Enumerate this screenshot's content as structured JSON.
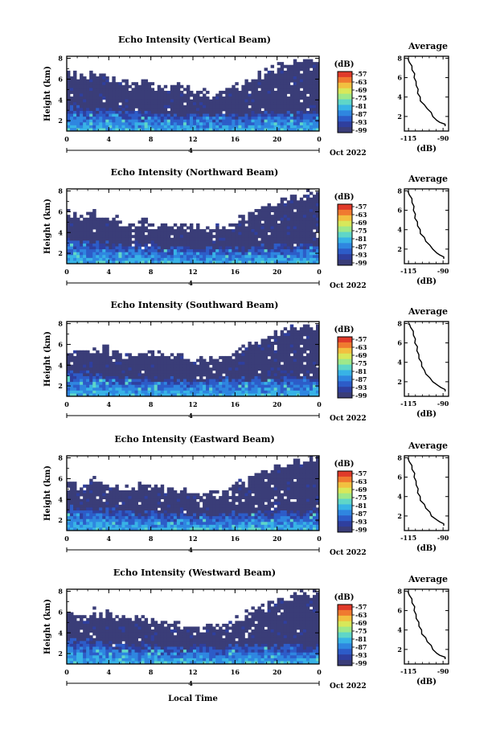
{
  "figure": {
    "bottom_label": "Local Time",
    "date_label": "Oct 2022",
    "day_label": "4",
    "heatmap_palette": [
      "#3a3d78",
      "#2f3f9e",
      "#2d5cc8",
      "#2f86e0",
      "#38b3e6",
      "#5fd6c8",
      "#9ee88a",
      "#d8e85a",
      "#f2c040",
      "#f07a30",
      "#e03a2a"
    ]
  },
  "chart_data": [
    {
      "type": "heatmap",
      "title": "Echo Intensity (Vertical Beam)",
      "ylabel": "Height (km)",
      "xlabel": "",
      "x_ticks": [
        "0",
        "4",
        "8",
        "12",
        "16",
        "20",
        "0"
      ],
      "y_ticks": [
        "2",
        "4",
        "6",
        "8"
      ],
      "xlim": [
        0,
        24
      ],
      "ylim": [
        1,
        8.2
      ],
      "colorbar": {
        "unit": "(dB)",
        "ticks": [
          "-57",
          "-63",
          "-69",
          "-75",
          "-81",
          "-87",
          "-93",
          "-99"
        ]
      },
      "layers": {
        "cloud_top_km": [
          6.9,
          6.6,
          6.4,
          6.8,
          6.2,
          6.0,
          5.9,
          6.1,
          5.8,
          5.6,
          5.7,
          5.4,
          5.2,
          5.0,
          4.9,
          5.0,
          5.4,
          5.9,
          6.4,
          6.9,
          7.3,
          7.6,
          7.9,
          8.1,
          8.2
        ],
        "strong_top_km": [
          3.1,
          3.0,
          2.9,
          2.8,
          2.7,
          2.6,
          2.6,
          2.5,
          2.5,
          2.4,
          2.4,
          2.3,
          2.3,
          2.3,
          2.4,
          2.4,
          2.3,
          2.4,
          2.4,
          2.5,
          2.5,
          2.6,
          2.6,
          2.5,
          2.5
        ]
      },
      "average": {
        "title": "Average",
        "xlabel": "(dB)",
        "x_ticks": [
          "-115",
          "-90"
        ],
        "y_ticks": [
          "2",
          "4",
          "6",
          "8"
        ],
        "xlim": [
          -118,
          -86
        ],
        "ylim": [
          0.5,
          8.2
        ],
        "y": [
          1.0,
          1.2,
          1.4,
          1.6,
          2.0,
          2.4,
          2.8,
          3.2,
          3.6,
          4.0,
          4.4,
          4.8,
          5.2,
          5.6,
          6.0,
          6.4,
          6.8,
          7.2,
          7.6,
          8.0
        ],
        "x": [
          -88,
          -89,
          -92,
          -95,
          -97,
          -99,
          -101,
          -104,
          -106,
          -107,
          -108,
          -108.5,
          -109,
          -110,
          -110.5,
          -111,
          -112,
          -113,
          -114,
          -116
        ]
      }
    },
    {
      "type": "heatmap",
      "title": "Echo Intensity (Northward Beam)",
      "ylabel": "Height (km)",
      "xlabel": "",
      "x_ticks": [
        "0",
        "4",
        "8",
        "12",
        "16",
        "20",
        "0"
      ],
      "y_ticks": [
        "2",
        "4",
        "6",
        "8"
      ],
      "xlim": [
        0,
        24
      ],
      "ylim": [
        1,
        8.2
      ],
      "colorbar": {
        "unit": "(dB)",
        "ticks": [
          "-57",
          "-63",
          "-69",
          "-75",
          "-81",
          "-87",
          "-93",
          "-99"
        ]
      },
      "layers": {
        "cloud_top_km": [
          6.2,
          5.8,
          5.6,
          6.0,
          5.4,
          5.3,
          5.1,
          5.3,
          5.1,
          5.0,
          5.0,
          4.8,
          4.7,
          4.6,
          4.6,
          4.8,
          5.2,
          5.8,
          6.3,
          6.8,
          7.2,
          7.5,
          7.8,
          8.0,
          8.1
        ],
        "strong_top_km": [
          3.0,
          2.9,
          2.8,
          2.7,
          2.6,
          2.5,
          2.5,
          2.4,
          2.4,
          2.3,
          2.3,
          2.3,
          2.2,
          2.2,
          2.3,
          2.3,
          2.3,
          2.3,
          2.4,
          2.4,
          2.5,
          2.5,
          2.6,
          2.5,
          2.5
        ]
      },
      "average": {
        "title": "Average",
        "xlabel": "(dB)",
        "x_ticks": [
          "-115",
          "-90"
        ],
        "y_ticks": [
          "2",
          "4",
          "6",
          "8"
        ],
        "xlim": [
          -118,
          -86
        ],
        "ylim": [
          0.5,
          8.2
        ],
        "y": [
          1.0,
          1.2,
          1.4,
          1.6,
          2.0,
          2.4,
          2.8,
          3.2,
          3.6,
          4.0,
          4.4,
          4.8,
          5.2,
          5.6,
          6.0,
          6.4,
          6.8,
          7.2,
          7.6,
          8.0
        ],
        "x": [
          -89,
          -90,
          -92,
          -95,
          -97,
          -100,
          -102,
          -104,
          -106,
          -107,
          -108,
          -109,
          -110,
          -110.5,
          -111,
          -111.5,
          -112,
          -113,
          -114,
          -116
        ]
      }
    },
    {
      "type": "heatmap",
      "title": "Echo Intensity (Southward Beam)",
      "ylabel": "Height (km)",
      "xlabel": "",
      "x_ticks": [
        "0",
        "4",
        "8",
        "12",
        "16",
        "20",
        "0"
      ],
      "y_ticks": [
        "2",
        "4",
        "6",
        "8"
      ],
      "xlim": [
        0,
        24
      ],
      "ylim": [
        1,
        8.2
      ],
      "colorbar": {
        "unit": "(dB)",
        "ticks": [
          "-57",
          "-63",
          "-69",
          "-75",
          "-81",
          "-87",
          "-93",
          "-99"
        ]
      },
      "layers": {
        "cloud_top_km": [
          5.6,
          5.4,
          5.5,
          5.8,
          5.6,
          5.2,
          5.0,
          5.3,
          5.5,
          5.6,
          5.3,
          5.0,
          4.8,
          4.6,
          4.8,
          5.0,
          5.4,
          5.9,
          6.3,
          6.8,
          7.2,
          7.6,
          7.9,
          8.1,
          8.2
        ],
        "strong_top_km": [
          3.2,
          3.0,
          2.9,
          2.8,
          2.7,
          2.7,
          2.6,
          2.5,
          2.5,
          2.4,
          2.4,
          2.4,
          2.3,
          2.3,
          2.3,
          2.4,
          2.4,
          2.4,
          2.5,
          2.5,
          2.5,
          2.6,
          2.6,
          2.5,
          2.5
        ]
      },
      "average": {
        "title": "Average",
        "xlabel": "(dB)",
        "x_ticks": [
          "-115",
          "-90"
        ],
        "y_ticks": [
          "2",
          "4",
          "6",
          "8"
        ],
        "xlim": [
          -118,
          -86
        ],
        "ylim": [
          0.5,
          8.2
        ],
        "y": [
          1.0,
          1.2,
          1.4,
          1.6,
          2.0,
          2.4,
          2.8,
          3.2,
          3.6,
          4.0,
          4.4,
          4.8,
          5.2,
          5.6,
          6.0,
          6.4,
          6.8,
          7.2,
          7.6,
          8.0
        ],
        "x": [
          -88,
          -89,
          -91,
          -94,
          -97,
          -100,
          -102,
          -104,
          -105,
          -106,
          -107,
          -108,
          -108.5,
          -109,
          -110,
          -110.5,
          -111,
          -112,
          -113,
          -115
        ]
      }
    },
    {
      "type": "heatmap",
      "title": "Echo Intensity (Eastward Beam)",
      "ylabel": "Height (km)",
      "xlabel": "",
      "x_ticks": [
        "0",
        "4",
        "8",
        "12",
        "16",
        "20",
        "0"
      ],
      "y_ticks": [
        "2",
        "4",
        "6",
        "8"
      ],
      "xlim": [
        0,
        24
      ],
      "ylim": [
        1,
        8.2
      ],
      "colorbar": {
        "unit": "(dB)",
        "ticks": [
          "-57",
          "-63",
          "-69",
          "-75",
          "-81",
          "-87",
          "-93",
          "-99"
        ]
      },
      "layers": {
        "cloud_top_km": [
          6.0,
          5.7,
          5.8,
          6.1,
          5.6,
          5.4,
          5.3,
          5.5,
          5.6,
          5.4,
          5.2,
          5.0,
          4.9,
          4.7,
          4.8,
          5.1,
          5.5,
          6.0,
          6.5,
          6.9,
          7.3,
          7.6,
          7.9,
          8.1,
          8.2
        ],
        "strong_top_km": [
          3.1,
          3.0,
          2.9,
          2.8,
          2.7,
          2.6,
          2.6,
          2.5,
          2.5,
          2.4,
          2.4,
          2.3,
          2.3,
          2.3,
          2.3,
          2.4,
          2.4,
          2.4,
          2.5,
          2.5,
          2.5,
          2.6,
          2.6,
          2.5,
          2.5
        ]
      },
      "average": {
        "title": "Average",
        "xlabel": "(dB)",
        "x_ticks": [
          "-115",
          "-90"
        ],
        "y_ticks": [
          "2",
          "4",
          "6",
          "8"
        ],
        "xlim": [
          -118,
          -86
        ],
        "ylim": [
          0.5,
          8.2
        ],
        "y": [
          1.0,
          1.2,
          1.4,
          1.6,
          2.0,
          2.4,
          2.8,
          3.2,
          3.6,
          4.0,
          4.4,
          4.8,
          5.2,
          5.6,
          6.0,
          6.4,
          6.8,
          7.2,
          7.6,
          8.0
        ],
        "x": [
          -89,
          -90,
          -92,
          -95,
          -98,
          -100,
          -102,
          -104,
          -106,
          -107,
          -108,
          -108.5,
          -109,
          -110,
          -110.5,
          -111,
          -112,
          -113,
          -114,
          -116
        ]
      }
    },
    {
      "type": "heatmap",
      "title": "Echo Intensity (Westward Beam)",
      "ylabel": "Height (km)",
      "xlabel": "Local Time",
      "x_ticks": [
        "0",
        "4",
        "8",
        "12",
        "16",
        "20",
        "0"
      ],
      "y_ticks": [
        "2",
        "4",
        "6",
        "8"
      ],
      "xlim": [
        0,
        24
      ],
      "ylim": [
        1,
        8.2
      ],
      "colorbar": {
        "unit": "(dB)",
        "ticks": [
          "-57",
          "-63",
          "-69",
          "-75",
          "-81",
          "-87",
          "-93",
          "-99"
        ]
      },
      "layers": {
        "cloud_top_km": [
          6.3,
          6.0,
          6.0,
          6.3,
          5.8,
          5.6,
          5.4,
          5.6,
          5.5,
          5.3,
          5.2,
          5.0,
          4.9,
          4.7,
          4.8,
          5.1,
          5.5,
          6.0,
          6.5,
          6.9,
          7.3,
          7.6,
          7.9,
          8.1,
          8.2
        ],
        "strong_top_km": [
          3.1,
          3.0,
          2.9,
          2.8,
          2.7,
          2.6,
          2.6,
          2.5,
          2.5,
          2.4,
          2.4,
          2.3,
          2.3,
          2.3,
          2.3,
          2.4,
          2.4,
          2.4,
          2.5,
          2.5,
          2.5,
          2.6,
          2.6,
          2.5,
          2.5
        ]
      },
      "average": {
        "title": "Average",
        "xlabel": "(dB)",
        "x_ticks": [
          "-115",
          "-90"
        ],
        "y_ticks": [
          "2",
          "4",
          "6",
          "8"
        ],
        "xlim": [
          -118,
          -86
        ],
        "ylim": [
          0.5,
          8.2
        ],
        "y": [
          1.0,
          1.2,
          1.4,
          1.6,
          2.0,
          2.4,
          2.8,
          3.2,
          3.6,
          4.0,
          4.4,
          4.8,
          5.2,
          5.6,
          6.0,
          6.4,
          6.8,
          7.2,
          7.6,
          8.0
        ],
        "x": [
          -88,
          -89,
          -92,
          -95,
          -97,
          -99,
          -101,
          -103,
          -105,
          -106,
          -107,
          -108,
          -109,
          -110,
          -110.5,
          -111,
          -112,
          -113,
          -114,
          -116
        ]
      }
    }
  ]
}
